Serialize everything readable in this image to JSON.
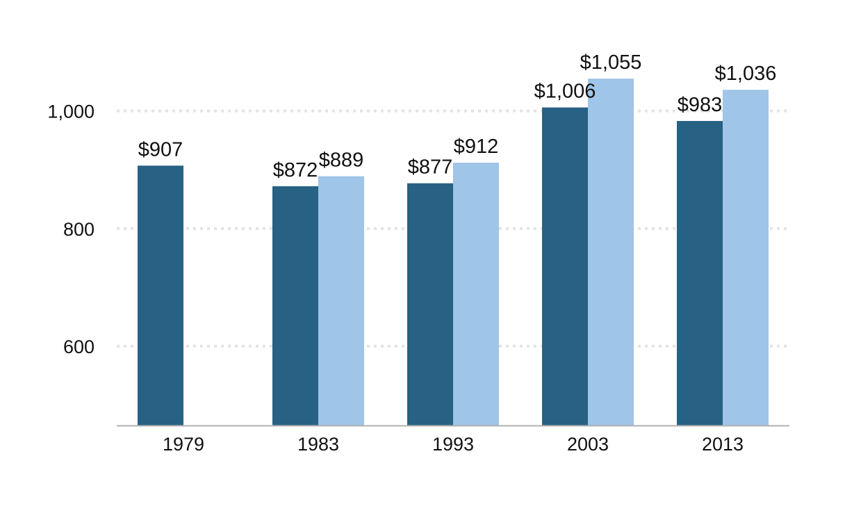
{
  "chart_data": {
    "type": "bar",
    "categories": [
      "1979",
      "1983",
      "1993",
      "2003",
      "2013"
    ],
    "series": [
      {
        "values": [
          907,
          872,
          877,
          1006,
          983
        ],
        "labels": [
          "$907",
          "$872",
          "$877",
          "$1,006",
          "$983"
        ],
        "color": "#276184"
      },
      {
        "values": [
          null,
          889,
          912,
          1055,
          1036
        ],
        "labels": [
          "",
          "$889",
          "$912",
          "$1,055",
          "$1,036"
        ],
        "color": "#9fc5e8"
      }
    ],
    "ylim": [
      465,
      1132
    ],
    "yticks": [
      600,
      800,
      1000
    ],
    "ytick_labels": [
      "600",
      "800",
      "1,000"
    ],
    "grid": true,
    "grid_color": "#e3e3e3",
    "axis_color": "#b0b0b0",
    "title": "",
    "xlabel": "",
    "ylabel": ""
  }
}
